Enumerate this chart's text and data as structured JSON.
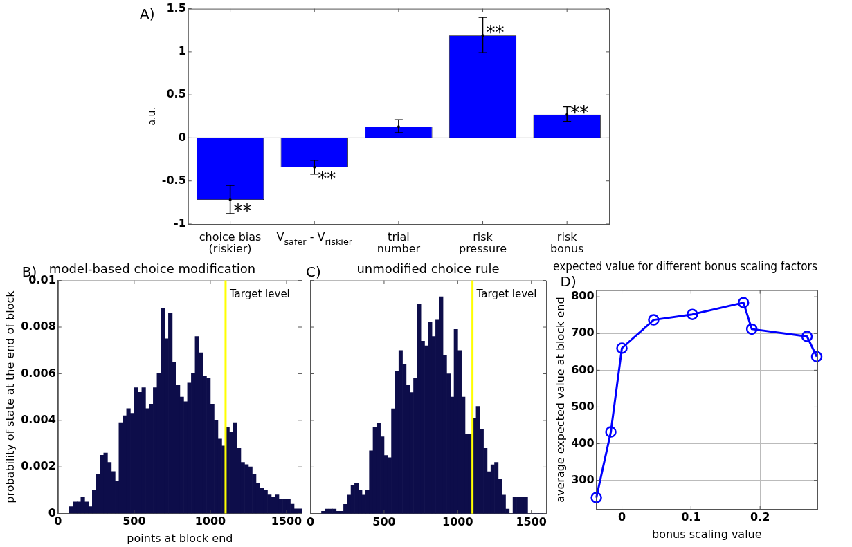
{
  "chart_data": [
    {
      "type": "bar",
      "categories": [
        "choice bias\n(riskier)",
        "V$_{safer}$ - V$_{riskier}$",
        "trial\nnumber",
        "risk\npressure",
        "risk\nbonus"
      ],
      "values": [
        -0.72,
        -0.34,
        0.13,
        1.19,
        0.27
      ],
      "errors": [
        [
          -0.88,
          -0.55
        ],
        [
          -0.42,
          -0.26
        ],
        [
          0.06,
          0.21
        ],
        [
          0.99,
          1.4
        ],
        [
          0.19,
          0.36
        ]
      ],
      "color": "#0000ff",
      "ylabel": "a.u.",
      "ylim": [
        -1,
        1.5
      ],
      "yticks": [
        -1,
        -0.5,
        0,
        0.5,
        1,
        1.5
      ],
      "grid": false,
      "legend": false,
      "ref_lines": [
        {
          "axis": "y",
          "value": 0,
          "color": "#000000"
        }
      ],
      "annotations": [
        "A)",
        {
          "text": "**",
          "x": "choice bias\n(riskier)",
          "y": -0.81
        },
        {
          "text": "**",
          "x": "V$_{safer}$ - V$_{riskier}$",
          "y": -0.43
        },
        {
          "text": "**",
          "x": "risk\npressure",
          "y": 1.26
        },
        {
          "text": "**",
          "x": "risk\nbonus",
          "y": 0.33
        }
      ]
    },
    {
      "type": "histogram",
      "title": "model-based choice modification",
      "xlabel": "points at block end",
      "ylabel": "probability of state at the end of block",
      "color": "#0d0d4a",
      "bins": [
        75,
        100,
        125,
        150,
        175,
        200,
        225,
        250,
        275,
        300,
        325,
        350,
        375,
        400,
        425,
        450,
        475,
        500,
        525,
        550,
        575,
        600,
        625,
        650,
        675,
        700,
        725,
        750,
        775,
        800,
        825,
        850,
        875,
        900,
        925,
        950,
        975,
        1000,
        1025,
        1050,
        1075,
        1100,
        1125,
        1150,
        1175,
        1200,
        1225,
        1250,
        1275,
        1300,
        1325,
        1350,
        1375,
        1400,
        1425,
        1450,
        1475,
        1500,
        1525,
        1550,
        1575,
        1600
      ],
      "values": [
        0.0003,
        0.0005,
        0.0005,
        0.0007,
        0.0005,
        0.0003,
        0.001,
        0.0017,
        0.0025,
        0.0026,
        0.0022,
        0.0018,
        0.0014,
        0.0039,
        0.0042,
        0.0045,
        0.0043,
        0.0054,
        0.0052,
        0.0054,
        0.0045,
        0.0047,
        0.0054,
        0.006,
        0.0088,
        0.0075,
        0.0086,
        0.0065,
        0.0055,
        0.005,
        0.0048,
        0.0056,
        0.006,
        0.0076,
        0.0069,
        0.0059,
        0.0058,
        0.0047,
        0.004,
        0.0032,
        0.0029,
        0.0037,
        0.0035,
        0.0039,
        0.0028,
        0.0022,
        0.0021,
        0.002,
        0.0017,
        0.0013,
        0.0011,
        0.001,
        0.0008,
        0.0007,
        0.0008,
        0.0006,
        0.0006,
        0.0006,
        0.0004,
        0.0002,
        0.0002
      ],
      "xlim": [
        0,
        1600
      ],
      "xticks": [
        0,
        500,
        1000,
        1500
      ],
      "ylim": [
        0,
        0.01
      ],
      "yticks": [
        0,
        0.002,
        0.004,
        0.006,
        0.008,
        0.01
      ],
      "grid": false,
      "legend": false,
      "ref_lines": [
        {
          "axis": "x",
          "value": 1100,
          "label": "Target level",
          "color": "#ffff00"
        }
      ],
      "annotations": [
        "B)"
      ]
    },
    {
      "type": "histogram",
      "title": "unmodified choice rule",
      "color": "#0d0d4a",
      "bins": [
        75,
        100,
        125,
        150,
        175,
        200,
        225,
        250,
        275,
        300,
        325,
        350,
        375,
        400,
        425,
        450,
        475,
        500,
        525,
        550,
        575,
        600,
        625,
        650,
        675,
        700,
        725,
        750,
        775,
        800,
        825,
        850,
        875,
        900,
        925,
        950,
        975,
        1000,
        1025,
        1050,
        1075,
        1100,
        1125,
        1150,
        1175,
        1200,
        1225,
        1250,
        1275,
        1300,
        1325,
        1350,
        1375,
        1400,
        1425,
        1450,
        1475,
        1500,
        1525,
        1550,
        1575,
        1600
      ],
      "values": [
        0.0001,
        0.0002,
        0.0002,
        0.0002,
        0.0001,
        0.0001,
        0.0004,
        0.0008,
        0.0012,
        0.0013,
        0.001,
        0.0008,
        0.001,
        0.0027,
        0.0037,
        0.0039,
        0.0033,
        0.0025,
        0.0024,
        0.0045,
        0.0061,
        0.007,
        0.0064,
        0.0055,
        0.0052,
        0.0058,
        0.009,
        0.0074,
        0.0072,
        0.0082,
        0.0076,
        0.0083,
        0.0093,
        0.0068,
        0.006,
        0.005,
        0.0079,
        0.007,
        0.005,
        0.0034,
        0.0034,
        0.0041,
        0.0046,
        0.0036,
        0.0028,
        0.0018,
        0.0021,
        0.0022,
        0.0015,
        0.0008,
        0.0002,
        0,
        0.0007,
        0.0007,
        0.0007,
        0.0007,
        0,
        0,
        0,
        0,
        0
      ],
      "xlim": [
        0,
        1600
      ],
      "xticks": [
        0,
        500,
        1000,
        1500
      ],
      "ylim": [
        0,
        0.01
      ],
      "yticks": [
        0,
        0.002,
        0.004,
        0.006,
        0.008,
        0.01
      ],
      "tick_labels": "x",
      "grid": false,
      "legend": false,
      "ref_lines": [
        {
          "axis": "x",
          "value": 1100,
          "label": "Target level",
          "color": "#ffff00"
        }
      ],
      "annotations": [
        "C)"
      ]
    },
    {
      "type": "line",
      "title": "expected value for different bonus scaling factors",
      "xlabel": "bonus scaling value",
      "ylabel": "average expected value at block end",
      "color": "#0000ff",
      "marker": "circle",
      "line_style": "solid",
      "x": [
        -0.037,
        -0.016,
        0,
        0.046,
        0.102,
        0.176,
        0.188,
        0.268,
        0.282
      ],
      "values": [
        253,
        432,
        660,
        737,
        752,
        784,
        712,
        692,
        637
      ],
      "xlim": [
        -0.037,
        0.283
      ],
      "xticks": [
        0,
        0.1,
        0.2
      ],
      "ylim": [
        221,
        818
      ],
      "yticks": [
        300,
        400,
        500,
        600,
        700,
        800
      ],
      "grid": true,
      "legend": false,
      "annotations": [
        "D)"
      ]
    }
  ]
}
